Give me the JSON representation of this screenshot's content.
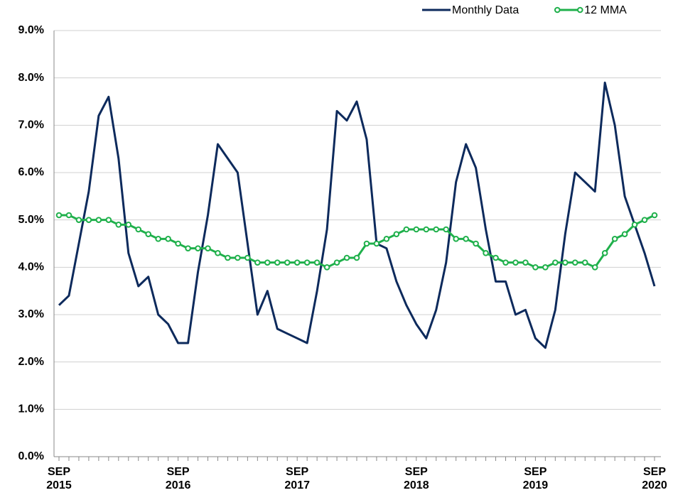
{
  "chart_data": {
    "type": "line",
    "categories": [
      "SEP\n2015",
      null,
      null,
      null,
      null,
      null,
      null,
      null,
      null,
      null,
      null,
      null,
      "SEP\n2016",
      null,
      null,
      null,
      null,
      null,
      null,
      null,
      null,
      null,
      null,
      null,
      "SEP\n2017",
      null,
      null,
      null,
      null,
      null,
      null,
      null,
      null,
      null,
      null,
      null,
      "SEP\n2018",
      null,
      null,
      null,
      null,
      null,
      null,
      null,
      null,
      null,
      null,
      null,
      "SEP\n2019",
      null,
      null,
      null,
      null,
      null,
      null,
      null,
      null,
      null,
      null,
      null,
      "SEP\n2020"
    ],
    "series": [
      {
        "name": "Monthly Data",
        "color": "#0d2a5c",
        "markers": false,
        "values": [
          3.2,
          3.4,
          4.5,
          5.6,
          7.2,
          7.6,
          6.3,
          4.3,
          3.6,
          3.8,
          3.0,
          2.8,
          2.4,
          2.4,
          3.9,
          5.1,
          6.6,
          6.3,
          6.0,
          4.5,
          3.0,
          3.5,
          2.7,
          2.6,
          2.5,
          2.4,
          3.5,
          4.8,
          7.3,
          7.1,
          7.5,
          6.7,
          4.5,
          4.4,
          3.7,
          3.2,
          2.8,
          2.5,
          3.1,
          4.1,
          5.8,
          6.6,
          6.1,
          4.8,
          3.7,
          3.7,
          3.0,
          3.1,
          2.5,
          2.3,
          3.1,
          4.7,
          6.0,
          5.8,
          5.6,
          7.9,
          7.0,
          5.5,
          4.9,
          4.3,
          3.6
        ]
      },
      {
        "name": "12 MMA",
        "color": "#1fb04b",
        "markers": true,
        "values": [
          5.1,
          5.1,
          5.0,
          5.0,
          5.0,
          5.0,
          4.9,
          4.9,
          4.8,
          4.7,
          4.6,
          4.6,
          4.5,
          4.4,
          4.4,
          4.4,
          4.3,
          4.2,
          4.2,
          4.2,
          4.1,
          4.1,
          4.1,
          4.1,
          4.1,
          4.1,
          4.1,
          4.0,
          4.1,
          4.2,
          4.2,
          4.5,
          4.5,
          4.6,
          4.7,
          4.8,
          4.8,
          4.8,
          4.8,
          4.8,
          4.6,
          4.6,
          4.5,
          4.3,
          4.2,
          4.1,
          4.1,
          4.1,
          4.0,
          4.0,
          4.1,
          4.1,
          4.1,
          4.1,
          4.0,
          4.3,
          4.6,
          4.7,
          4.9,
          5.0,
          5.1
        ]
      }
    ],
    "ylim": [
      0,
      9
    ],
    "yticks": [
      {
        "value": 0,
        "label": "0.0%"
      },
      {
        "value": 1,
        "label": "1.0%"
      },
      {
        "value": 2,
        "label": "2.0%"
      },
      {
        "value": 3,
        "label": "3.0%"
      },
      {
        "value": 4,
        "label": "4.0%"
      },
      {
        "value": 5,
        "label": "5.0%"
      },
      {
        "value": 6,
        "label": "6.0%"
      },
      {
        "value": 7,
        "label": "7.0%"
      },
      {
        "value": 8,
        "label": "8.0%"
      },
      {
        "value": 9,
        "label": "9.0%"
      }
    ],
    "grid": true,
    "legend": "top-right"
  }
}
